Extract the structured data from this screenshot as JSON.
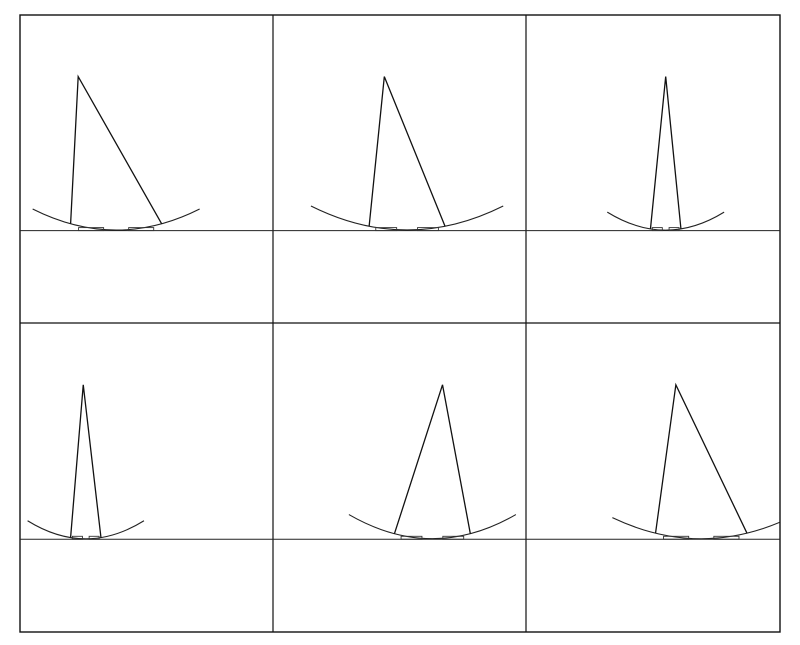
{
  "figure": {
    "layout": {
      "rows": 2,
      "columns": 3
    },
    "line_color": "#111111",
    "background": "#ffffff",
    "panels": [
      {
        "id": 1,
        "apex_offset": -0.27,
        "stance_width": 0.36,
        "arc_span": 0.66,
        "arc_depth": 0.07,
        "arc_shift": -0.12
      },
      {
        "id": 2,
        "apex_offset": -0.06,
        "stance_width": 0.3,
        "arc_span": 0.76,
        "arc_depth": 0.08,
        "arc_shift": 0.03
      },
      {
        "id": 3,
        "apex_offset": 0.05,
        "stance_width": 0.12,
        "arc_span": 0.46,
        "arc_depth": 0.06,
        "arc_shift": 0.05
      },
      {
        "id": 4,
        "apex_offset": -0.25,
        "stance_width": 0.12,
        "arc_span": 0.46,
        "arc_depth": 0.06,
        "arc_shift": -0.24
      },
      {
        "id": 5,
        "apex_offset": 0.17,
        "stance_width": 0.3,
        "arc_span": 0.66,
        "arc_depth": 0.08,
        "arc_shift": 0.13
      },
      {
        "id": 6,
        "apex_offset": 0.09,
        "stance_width": 0.36,
        "arc_span": 0.7,
        "arc_depth": 0.07,
        "arc_shift": 0.19
      }
    ]
  }
}
